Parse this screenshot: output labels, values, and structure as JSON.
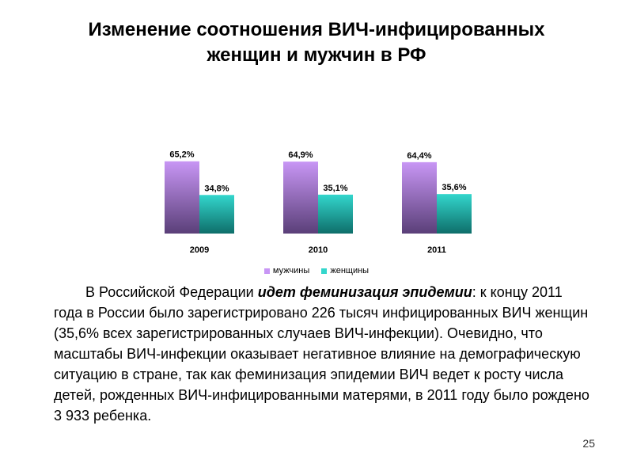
{
  "slide": {
    "title_line1": "Изменение соотношения ВИЧ-инфицированных",
    "title_line2": "женщин и мужчин в РФ",
    "page_number": "25"
  },
  "body": {
    "intro": "В Российской Федерации ",
    "emphasis": "идет феминизация эпидемии",
    "rest": ": к концу 2011 года в России было зарегистрировано 226 тысяч инфицированных ВИЧ женщин (35,6% всех зарегистрированных случаев ВИЧ-инфекции). Очевидно, что масштабы ВИЧ-инфекции оказывает негативное влияние на демографическую ситуацию в стране, так как феминизация эпидемии ВИЧ ведет к росту числа детей, рожденных ВИЧ-инфицированными матерями, в 2011 году было рождено 3 933 ребенка."
  },
  "chart_data": {
    "type": "bar",
    "categories": [
      "2009",
      "2010",
      "2011"
    ],
    "series": [
      {
        "name": "мужчины",
        "values": [
          65.2,
          64.9,
          64.4
        ],
        "labels": [
          "65,2%",
          "64,9%",
          "64,4%"
        ],
        "color_top": "#c896f5",
        "color_bottom": "#5a3f78"
      },
      {
        "name": "женщины",
        "values": [
          34.8,
          35.1,
          35.6
        ],
        "labels": [
          "34,8%",
          "35,1%",
          "35,6%"
        ],
        "color_top": "#33d6cc",
        "color_bottom": "#0e6e6a"
      }
    ],
    "ylim": [
      0,
      100
    ],
    "grid": false,
    "legend": "bottom"
  }
}
